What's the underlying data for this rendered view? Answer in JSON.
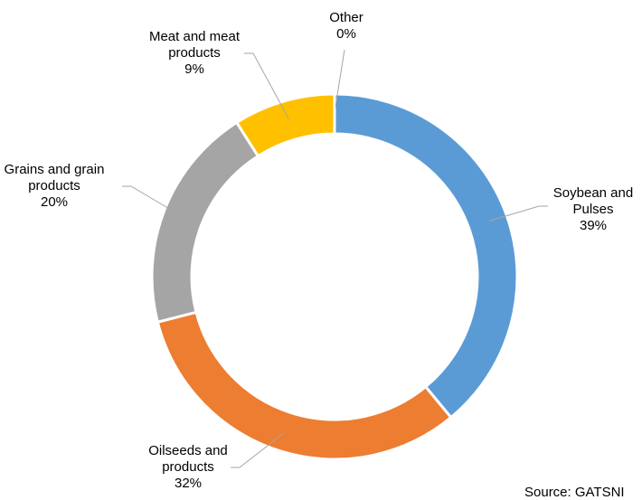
{
  "chart_data": {
    "type": "pie",
    "donut": true,
    "categories": [
      "Soybean and Pulses",
      "Oilseeds and products",
      "Grains and grain products",
      "Meat and meat products",
      "Other"
    ],
    "values": [
      39,
      32,
      20,
      9,
      0
    ],
    "unit": "%",
    "colors": [
      "#5b9bd5",
      "#ed7d31",
      "#a5a5a5",
      "#ffc000",
      "#4472c4"
    ],
    "labels": [
      {
        "lines": [
          "Soybean and",
          "Pulses",
          "39%"
        ]
      },
      {
        "lines": [
          "Oilseeds and",
          "products",
          "32%"
        ]
      },
      {
        "lines": [
          "Grains and grain",
          "products",
          "20%"
        ]
      },
      {
        "lines": [
          "Meat and meat",
          "products",
          "9%"
        ]
      },
      {
        "lines": [
          "Other",
          "0%"
        ]
      }
    ],
    "legend": "none",
    "start": "top, clockwise"
  },
  "source": "Source: GATSNI"
}
